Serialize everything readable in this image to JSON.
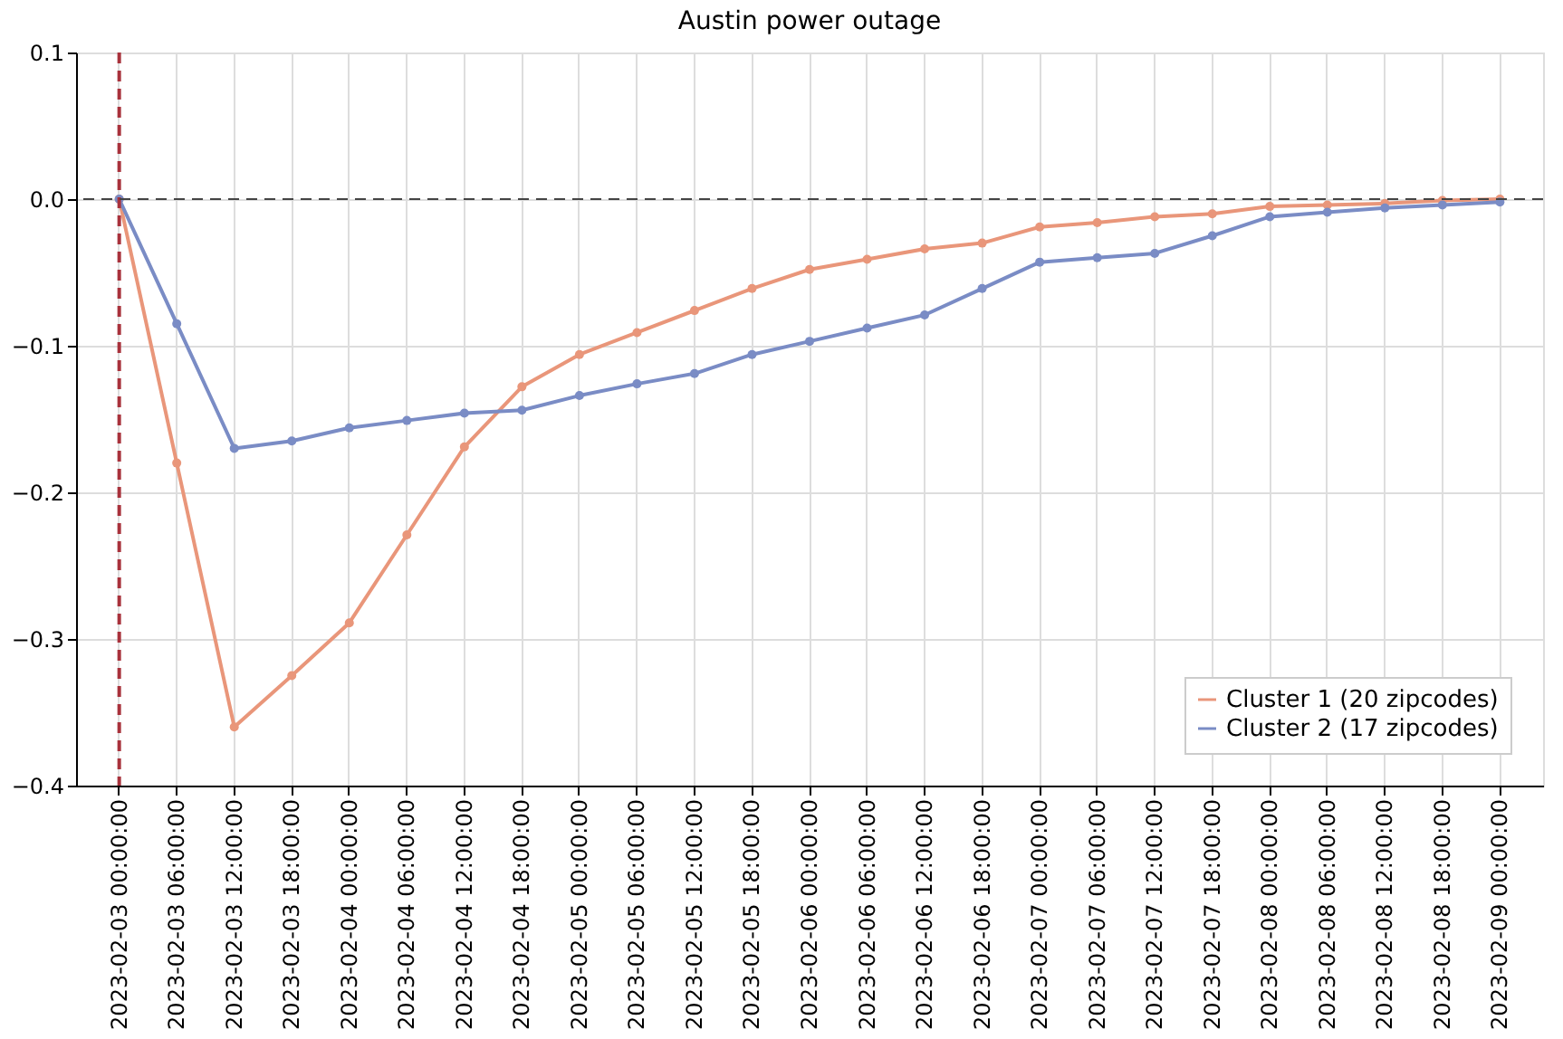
{
  "chart_data": {
    "type": "line",
    "title": "Austin power outage",
    "categories": [
      "2023-02-03 00:00:00",
      "2023-02-03 06:00:00",
      "2023-02-03 12:00:00",
      "2023-02-03 18:00:00",
      "2023-02-04 00:00:00",
      "2023-02-04 06:00:00",
      "2023-02-04 12:00:00",
      "2023-02-04 18:00:00",
      "2023-02-05 00:00:00",
      "2023-02-05 06:00:00",
      "2023-02-05 12:00:00",
      "2023-02-05 18:00:00",
      "2023-02-06 00:00:00",
      "2023-02-06 06:00:00",
      "2023-02-06 12:00:00",
      "2023-02-06 18:00:00",
      "2023-02-07 00:00:00",
      "2023-02-07 06:00:00",
      "2023-02-07 12:00:00",
      "2023-02-07 18:00:00",
      "2023-02-08 00:00:00",
      "2023-02-08 06:00:00",
      "2023-02-08 12:00:00",
      "2023-02-08 18:00:00",
      "2023-02-09 00:00:00"
    ],
    "series": [
      {
        "name": "Cluster 1 (20 zipcodes)",
        "color": "#e9967a",
        "values": [
          0,
          -0.18,
          -0.36,
          -0.325,
          -0.289,
          -0.229,
          -0.169,
          -0.128,
          -0.106,
          -0.091,
          -0.076,
          -0.061,
          -0.048,
          -0.041,
          -0.034,
          -0.03,
          -0.019,
          -0.016,
          -0.012,
          -0.01,
          -0.005,
          -0.004,
          -0.003,
          -0.001,
          0
        ]
      },
      {
        "name": "Cluster 2 (17 zipcodes)",
        "color": "#7a8cc5",
        "values": [
          0,
          -0.085,
          -0.17,
          -0.165,
          -0.156,
          -0.151,
          -0.146,
          -0.144,
          -0.134,
          -0.126,
          -0.119,
          -0.106,
          -0.097,
          -0.088,
          -0.079,
          -0.061,
          -0.043,
          -0.04,
          -0.037,
          -0.025,
          -0.012,
          -0.009,
          -0.006,
          -0.004,
          -0.002
        ]
      }
    ],
    "ylim": [
      -0.4,
      0.1
    ],
    "yticks": [
      {
        "value": -0.4,
        "label": "−0.4"
      },
      {
        "value": -0.3,
        "label": "−0.3"
      },
      {
        "value": -0.2,
        "label": "−0.2"
      },
      {
        "value": -0.1,
        "label": "−0.1"
      },
      {
        "value": 0,
        "label": "0.0"
      },
      0.1
    ],
    "ref_lines": [
      {
        "axis": "x",
        "value": "2023-02-03 00:00:00",
        "color": "#a8323c",
        "line_style": "dashed"
      },
      {
        "axis": "y",
        "value": 0,
        "color": "#444444",
        "line_style": "dashed"
      }
    ],
    "grid": true,
    "legend": "bottom right",
    "marker": "circle",
    "line_style": "solid"
  }
}
